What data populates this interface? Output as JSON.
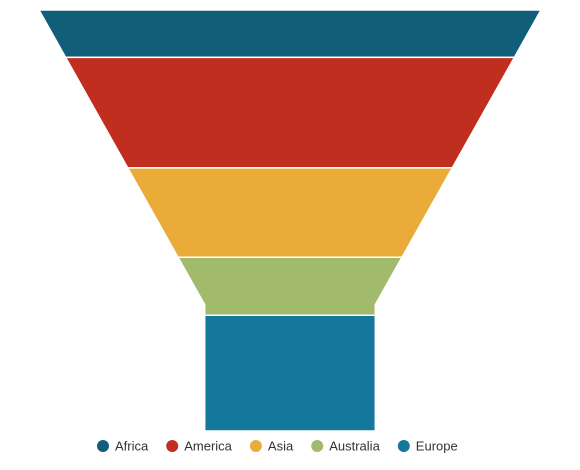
{
  "chart_data": {
    "type": "funnel",
    "title": "",
    "categories": [
      "Africa",
      "America",
      "Asia",
      "Australia",
      "Europe"
    ],
    "values": [
      9,
      21,
      17,
      11,
      22
    ],
    "colors": [
      "#115e7b",
      "#c02e1f",
      "#ebab39",
      "#a1ba6c",
      "#13789c"
    ],
    "legend": {
      "position": "bottom",
      "items": [
        "Africa",
        "America",
        "Asia",
        "Australia",
        "Europe"
      ]
    },
    "neck_width_ratio": 0.34,
    "neck_height_ratio": 0.3
  }
}
